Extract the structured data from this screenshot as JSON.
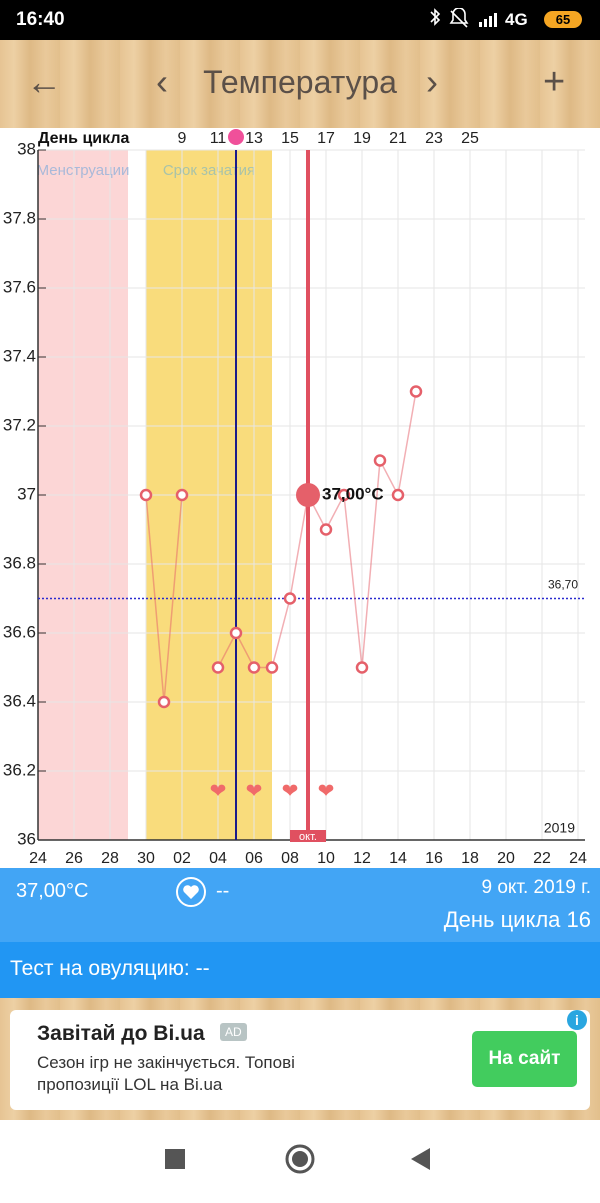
{
  "status_bar": {
    "time": "16:40",
    "network": "4G",
    "battery": "65"
  },
  "header": {
    "back": "←",
    "prev": "‹",
    "title": "Температура",
    "next": "›",
    "add": "+"
  },
  "chart_data": {
    "type": "line",
    "cycle_day_title": "День цикла",
    "categories": [
      "24",
      null,
      "26",
      null,
      "28",
      null,
      "30",
      null,
      "02",
      null,
      "04",
      null,
      "06",
      null,
      "08",
      null,
      "10",
      null,
      "12",
      null,
      "14",
      null,
      "16",
      null,
      "18",
      null,
      "20",
      null,
      "22",
      null,
      "24"
    ],
    "cycle_days": [
      null,
      null,
      null,
      null,
      null,
      null,
      null,
      null,
      "9",
      null,
      "11",
      null,
      "13",
      null,
      "15",
      null,
      "17",
      null,
      "19",
      null,
      "21",
      null,
      "23",
      null,
      "25",
      null,
      null,
      null,
      null,
      null,
      null
    ],
    "values": [
      null,
      null,
      null,
      null,
      null,
      null,
      37.0,
      36.4,
      37.0,
      null,
      36.5,
      36.6,
      36.5,
      36.5,
      36.7,
      37.0,
      36.9,
      37.0,
      36.5,
      37.1,
      37.0,
      37.3,
      null,
      null,
      null,
      null,
      null,
      null,
      null,
      null,
      null
    ],
    "value_labels": [
      null,
      null,
      null,
      null,
      null,
      null,
      null,
      null,
      null,
      null,
      null,
      null,
      null,
      null,
      null,
      "37,00°C",
      null,
      null,
      null,
      null,
      null,
      null,
      null,
      null,
      null,
      null,
      null,
      null,
      null,
      null,
      null
    ],
    "color": "#e5606a",
    "ylim": [
      36,
      38
    ],
    "yticks": [
      36,
      36.2,
      36.4,
      36.6,
      36.8,
      37,
      37.2,
      37.4,
      37.6,
      37.8,
      38
    ],
    "grid": true,
    "coverline": {
      "value": 36.7,
      "label": "36,70",
      "color": "#2a2ad0"
    },
    "menstruation": {
      "label": "Менструации",
      "from": 0,
      "to": 5,
      "color": "#fcd6d6"
    },
    "fertile": {
      "label": "Срок зачатия",
      "from": 6,
      "to": 13,
      "color": "#f9dc7c"
    },
    "ovulation_day": 11,
    "intercourse_days": [
      10,
      12,
      14,
      16
    ],
    "selected": 15,
    "today_label": "окт.",
    "year": "2019"
  },
  "info": {
    "heart": "--",
    "date": "9 окт. 2019 г.",
    "cycle_day": "День цикла 16",
    "ovulation_test": "Тест на овуляцию: --"
  },
  "ad": {
    "title": "Завітай до Bi.ua",
    "badge": "AD",
    "text": "Сезон ігр не закінчується. Топові пропозиції LOL на Bi.ua",
    "button": "На сайт",
    "info": "i"
  }
}
